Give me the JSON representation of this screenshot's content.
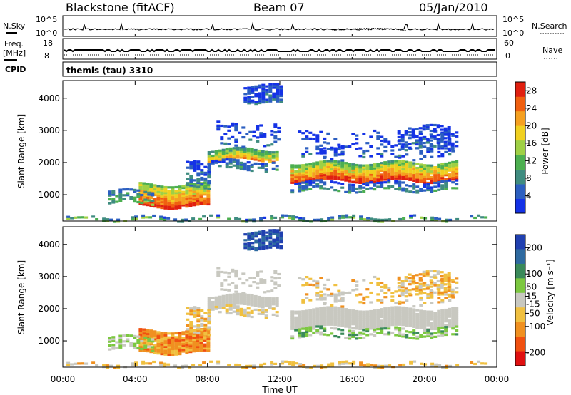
{
  "header": {
    "station": "Blackstone (fitACF)",
    "beam": "Beam 07",
    "date": "05/Jan/2010"
  },
  "strips": {
    "nsky_label": "N.Sky",
    "nsky_ticks": [
      "10^5",
      "10^0"
    ],
    "nsearch_label": "N.Search",
    "nsearch_ticks": [
      "10^5",
      "10^0"
    ],
    "freq_label_1": "Freq.",
    "freq_label_2": "[MHz]",
    "freq_ticks": [
      "18",
      "8"
    ],
    "nave_label": "Nave",
    "nave_ticks": [
      "60",
      "0"
    ],
    "cpid_label": "CPID",
    "cpid_value": "themis (tau) 3310"
  },
  "colors": {
    "power_scale": [
      "#1432e6",
      "#2c5fc0",
      "#3f8c80",
      "#4caf50",
      "#9fd045",
      "#f0d020",
      "#f5a020",
      "#f06010",
      "#e02010"
    ],
    "velocity_scale": [
      "#2040b0",
      "#2e6aa0",
      "#3a8a5a",
      "#7cc840",
      "#c8c8c0",
      "#f0c040",
      "#f09020",
      "#f05010",
      "#e01010"
    ]
  },
  "chart_data": [
    {
      "type": "heatmap",
      "title": "Power",
      "xlabel": "Time UT",
      "ylabel": "Slant Range [km]",
      "x_ticks": [
        "00:00",
        "04:00",
        "08:00",
        "12:00",
        "16:00",
        "20:00",
        "00:00"
      ],
      "xlim": [
        0,
        24
      ],
      "y_ticks": [
        1000,
        2000,
        3000,
        4000
      ],
      "ylim": [
        180,
        4550
      ],
      "colorbar_label": "Power [dB]",
      "colorbar_ticks": [
        4,
        8,
        12,
        16,
        20,
        24,
        28
      ],
      "colorbar_range": [
        0,
        30
      ]
    },
    {
      "type": "heatmap",
      "title": "Velocity",
      "xlabel": "Time UT",
      "ylabel": "Slant Range [km]",
      "x_ticks": [
        "00:00",
        "04:00",
        "08:00",
        "12:00",
        "16:00",
        "20:00",
        "00:00"
      ],
      "xlim": [
        0,
        24
      ],
      "y_ticks": [
        1000,
        2000,
        3000,
        4000
      ],
      "ylim": [
        180,
        4550
      ],
      "colorbar_label": "Velocity [m s⁻¹]",
      "colorbar_ticks": [
        200,
        100,
        50,
        15,
        -15,
        -50,
        -100,
        -200
      ],
      "colorbar_range": [
        -250,
        250
      ]
    }
  ]
}
